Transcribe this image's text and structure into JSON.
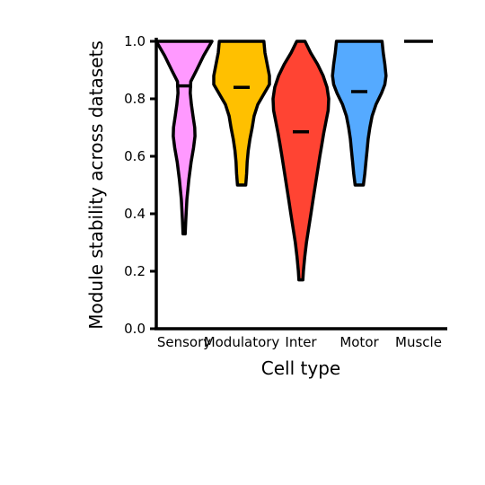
{
  "chart_data": {
    "type": "violin",
    "xlabel": "Cell type",
    "ylabel": "Module stability across datasets",
    "ylim": [
      0,
      1
    ],
    "yticks": [
      "0.0",
      "0.2",
      "0.4",
      "0.6",
      "0.8",
      "1.0"
    ],
    "categories": [
      "Sensory",
      "Modulatory",
      "Inter",
      "Motor",
      "Muscle"
    ],
    "series": [
      {
        "category": "Sensory",
        "color": "#FF99FF",
        "min": 0.33,
        "max": 1.0,
        "median": 0.845,
        "profile": [
          [
            1.0,
            1.0
          ],
          [
            0.95,
            0.7
          ],
          [
            0.9,
            0.45
          ],
          [
            0.86,
            0.24
          ],
          [
            0.82,
            0.22
          ],
          [
            0.78,
            0.26
          ],
          [
            0.74,
            0.32
          ],
          [
            0.7,
            0.38
          ],
          [
            0.67,
            0.39
          ],
          [
            0.63,
            0.34
          ],
          [
            0.58,
            0.25
          ],
          [
            0.52,
            0.17
          ],
          [
            0.45,
            0.1
          ],
          [
            0.38,
            0.06
          ],
          [
            0.33,
            0.04
          ]
        ]
      },
      {
        "category": "Modulatory",
        "color": "#FFC000",
        "min": 0.5,
        "max": 1.0,
        "median": 0.84,
        "profile": [
          [
            1.0,
            0.8
          ],
          [
            0.96,
            0.84
          ],
          [
            0.92,
            0.92
          ],
          [
            0.88,
            1.0
          ],
          [
            0.85,
            1.0
          ],
          [
            0.82,
            0.82
          ],
          [
            0.78,
            0.58
          ],
          [
            0.74,
            0.45
          ],
          [
            0.7,
            0.38
          ],
          [
            0.66,
            0.3
          ],
          [
            0.62,
            0.24
          ],
          [
            0.58,
            0.2
          ],
          [
            0.54,
            0.18
          ],
          [
            0.5,
            0.15
          ]
        ]
      },
      {
        "category": "Inter",
        "color": "#FF4433",
        "min": 0.17,
        "max": 1.0,
        "median": 0.685,
        "profile": [
          [
            1.0,
            0.15
          ],
          [
            0.96,
            0.35
          ],
          [
            0.92,
            0.6
          ],
          [
            0.88,
            0.8
          ],
          [
            0.84,
            0.94
          ],
          [
            0.8,
            1.0
          ],
          [
            0.76,
            0.98
          ],
          [
            0.72,
            0.9
          ],
          [
            0.68,
            0.82
          ],
          [
            0.64,
            0.75
          ],
          [
            0.6,
            0.68
          ],
          [
            0.55,
            0.6
          ],
          [
            0.5,
            0.52
          ],
          [
            0.45,
            0.44
          ],
          [
            0.4,
            0.36
          ],
          [
            0.35,
            0.28
          ],
          [
            0.3,
            0.2
          ],
          [
            0.25,
            0.14
          ],
          [
            0.2,
            0.09
          ],
          [
            0.17,
            0.07
          ]
        ]
      },
      {
        "category": "Motor",
        "color": "#55AAFF",
        "min": 0.5,
        "max": 1.0,
        "median": 0.825,
        "profile": [
          [
            1.0,
            0.82
          ],
          [
            0.96,
            0.86
          ],
          [
            0.92,
            0.92
          ],
          [
            0.88,
            0.96
          ],
          [
            0.85,
            0.92
          ],
          [
            0.82,
            0.8
          ],
          [
            0.78,
            0.6
          ],
          [
            0.74,
            0.46
          ],
          [
            0.7,
            0.38
          ],
          [
            0.66,
            0.32
          ],
          [
            0.62,
            0.28
          ],
          [
            0.58,
            0.24
          ],
          [
            0.54,
            0.2
          ],
          [
            0.5,
            0.15
          ]
        ]
      },
      {
        "category": "Muscle",
        "color": "#000000",
        "min": 1.0,
        "max": 1.0,
        "median": 1.0,
        "profile": []
      }
    ]
  }
}
